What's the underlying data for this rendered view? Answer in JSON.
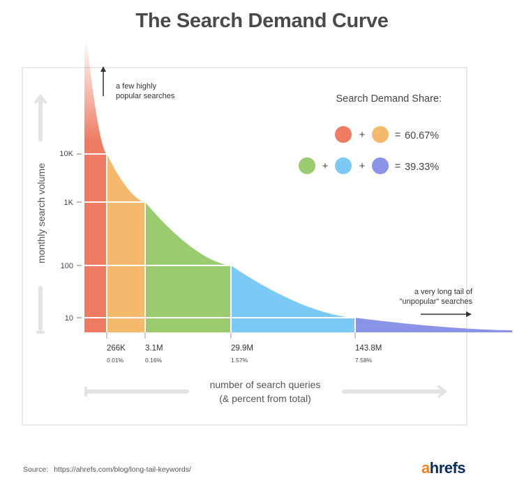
{
  "chart_data": {
    "type": "area",
    "title": "The Search Demand Curve",
    "xlabel_line1": "number of search queries",
    "xlabel_line2": "(& percent from total)",
    "ylabel": "monthly search volume",
    "y_scale": "log",
    "y_ticks": [
      "10K",
      "1K",
      "100",
      "10"
    ],
    "x_breakpoints": [
      {
        "queries": "266K",
        "percent": "0.01%",
        "volume": "10K"
      },
      {
        "queries": "3.1M",
        "percent": "0.16%",
        "volume": "1K"
      },
      {
        "queries": "29.9M",
        "percent": "1.57%",
        "volume": "100"
      },
      {
        "queries": "143.8M",
        "percent": "7.58%",
        "volume": "10"
      }
    ],
    "segments": [
      {
        "color": "#ee7b62"
      },
      {
        "color": "#f5b96e"
      },
      {
        "color": "#9acb6e"
      },
      {
        "color": "#7bcaf5"
      },
      {
        "color": "#8b93e6"
      }
    ],
    "annotations": {
      "head_line1": "a few highly",
      "head_line2": "popular searches",
      "tail_line1": "a very long tail of",
      "tail_line2": "\"unpopular\" searches"
    },
    "legend": {
      "title": "Search Demand Share:",
      "row1_value": "60.67%",
      "row2_value": "39.33%",
      "plus": "+",
      "equals": "="
    }
  },
  "footer": {
    "source_label": "Source:",
    "source_url": "https://ahrefs.com/blog/long-tail-keywords/",
    "logo_a": "a",
    "logo_rest": "hrefs"
  }
}
